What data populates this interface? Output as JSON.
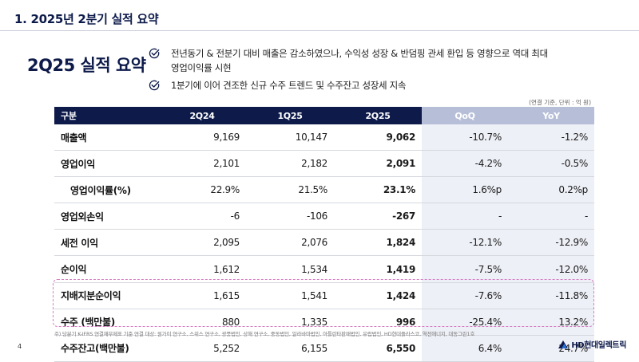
{
  "header": {
    "title": "1. 2025년 2분기 실적 요약"
  },
  "summary": {
    "title": "2Q25 실적 요약",
    "bullets": [
      {
        "line1": "전년동기 & 전분기 대비 매출은 감소하였으나, 수익성 성장 & 반덤핑 관세 환입 등 영향으로 역대 최대",
        "line2": "영업이익률 시현"
      },
      {
        "line1": "1분기에 이어 견조한 신규 수주 트렌드 및 수주잔고 성장세 지속"
      }
    ]
  },
  "unit_note": "(연결 기준, 단위 : 억 원)",
  "table": {
    "headers": [
      "구분",
      "2Q24",
      "1Q25",
      "2Q25",
      "QoQ",
      "YoY"
    ],
    "rows": [
      {
        "label": "매출액",
        "v1": "9,169",
        "v2": "10,147",
        "v3": "9,062",
        "qoq": "-10.7%",
        "yoy": "-1.2%"
      },
      {
        "label": "영업이익",
        "v1": "2,101",
        "v2": "2,182",
        "v3": "2,091",
        "qoq": "-4.2%",
        "yoy": "-0.5%"
      },
      {
        "label": "영업이익률(%)",
        "v1": "22.9%",
        "v2": "21.5%",
        "v3": "23.1%",
        "qoq": "1.6%p",
        "yoy": "0.2%p"
      },
      {
        "label": "영업외손익",
        "v1": "-6",
        "v2": "-106",
        "v3": "-267",
        "qoq": "-",
        "yoy": "-"
      },
      {
        "label": "세전 이익",
        "v1": "2,095",
        "v2": "2,076",
        "v3": "1,824",
        "qoq": "-12.1%",
        "yoy": "-12.9%"
      },
      {
        "label": "순이익",
        "v1": "1,612",
        "v2": "1,534",
        "v3": "1,419",
        "qoq": "-7.5%",
        "yoy": "-12.0%"
      },
      {
        "label": "지배지분순이익",
        "v1": "1,615",
        "v2": "1,541",
        "v3": "1,424",
        "qoq": "-7.6%",
        "yoy": "-11.8%"
      },
      {
        "label": "수주 (백만불)",
        "v1": "880",
        "v2": "1,335",
        "v3": "996",
        "qoq": "-25.4%",
        "yoy": "13.2%"
      },
      {
        "label": "수주잔고(백만불)",
        "v1": "5,252",
        "v2": "6,155",
        "v3": "6,550",
        "qoq": "6.4%",
        "yoy": "24.7%"
      }
    ]
  },
  "footnote": "주) 당분기 K-IFRS 연결재무제표 기준 연결 대상: 원가이 연구소, 스위스 연구소, 광풍법인, 상해 연구소, 중동법인, 알라바마법인, 아틀란타판매법인, 유럽법인, HD현대플라스코, 역전에너지, 대동그린1호",
  "page_number": "4",
  "logo": {
    "text": "HD현대일렉트릭"
  },
  "colors": {
    "navy": "#0d1a4a",
    "qheader": "#b7bfd8",
    "qcell": "#eef0f7",
    "dash": "#d67ac2"
  }
}
